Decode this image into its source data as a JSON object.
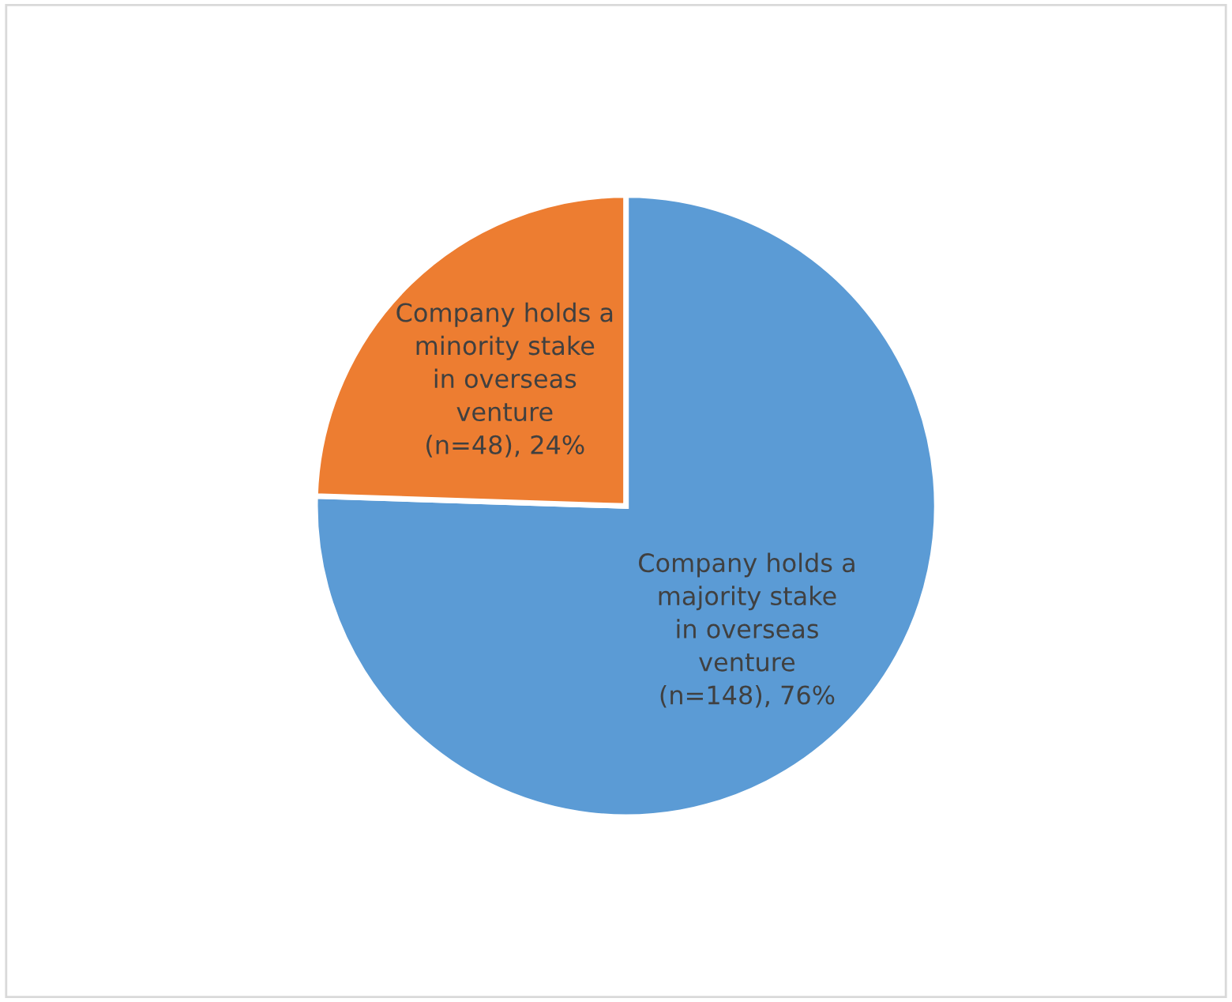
{
  "chart_data": {
    "type": "pie",
    "categories": [
      "Company holds a majority stake in overseas venture",
      "Company holds a minority stake in overseas venture"
    ],
    "values": [
      148,
      48
    ],
    "value_labels": [
      "(n=148), 76%",
      "(n=48), 24%"
    ],
    "colors": [
      "#5b9bd5",
      "#ed7d31"
    ],
    "legend": false
  }
}
